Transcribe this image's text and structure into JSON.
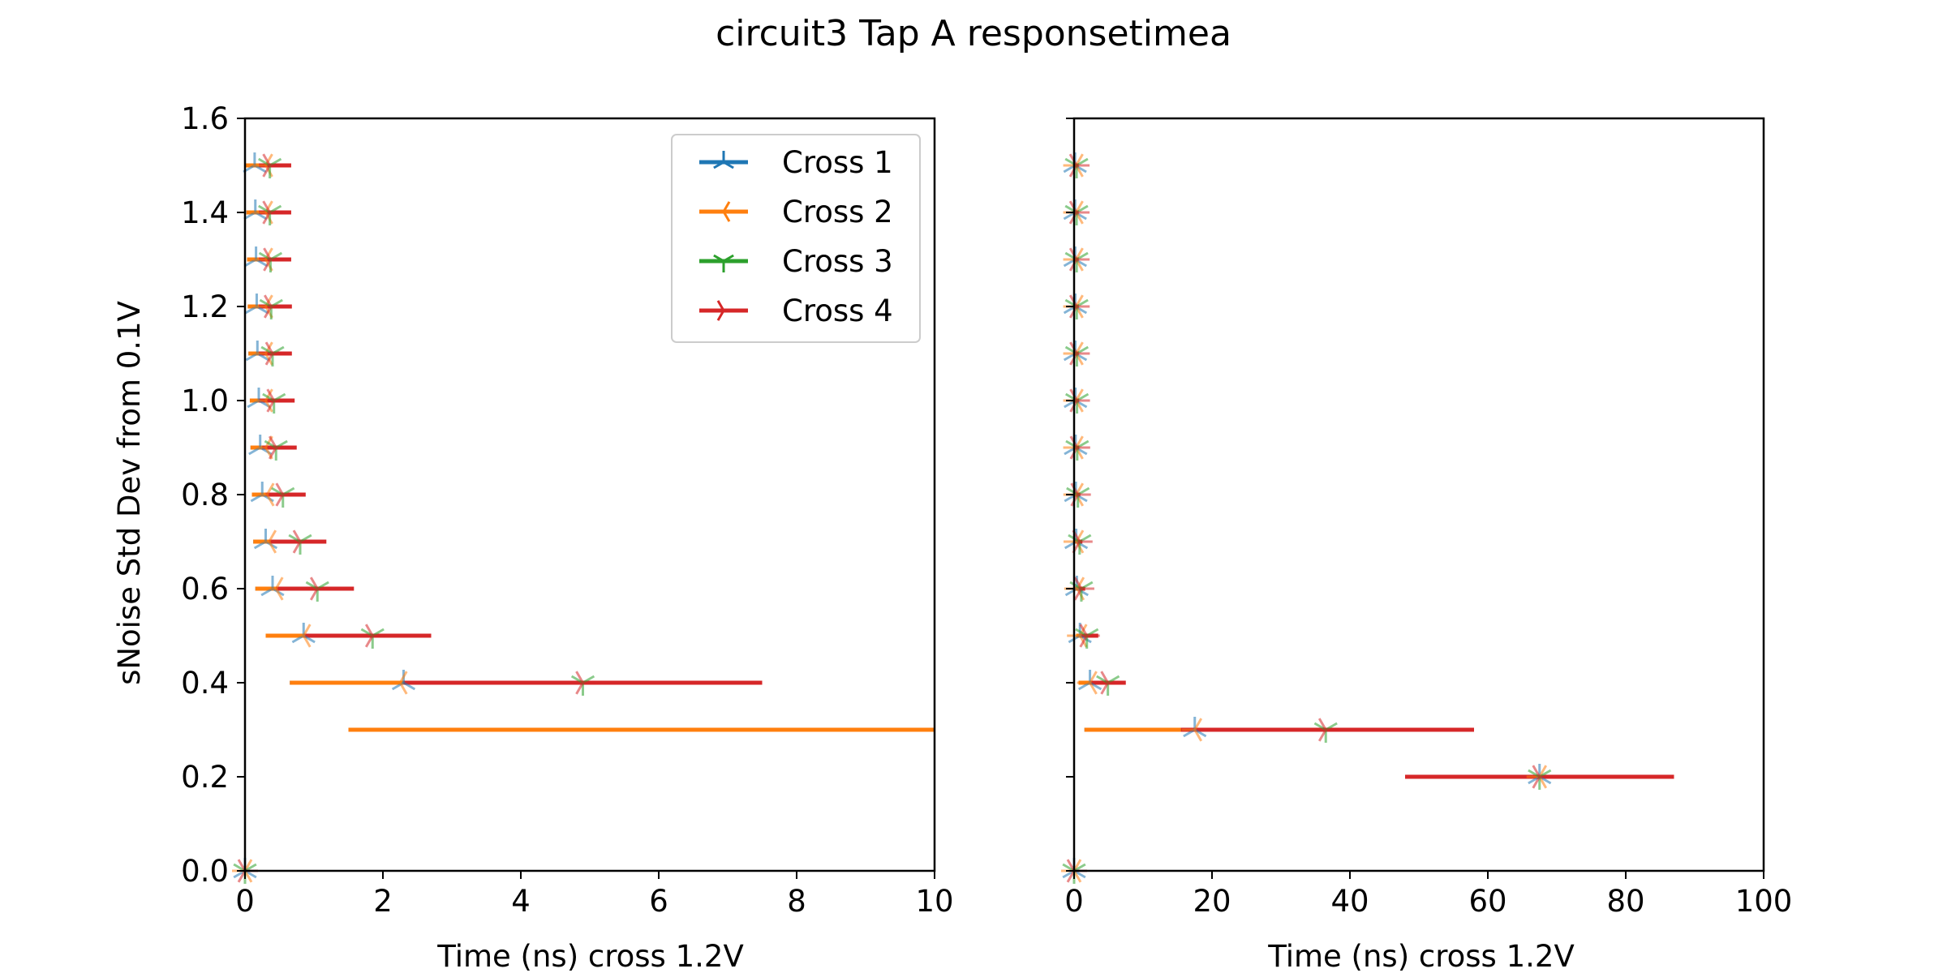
{
  "figure": {
    "title": "circuit3 Tap A responsetimea",
    "colors": {
      "Cross 1": "#1f77b4",
      "Cross 2": "#ff7f0e",
      "Cross 3": "#2ca02c",
      "Cross 4": "#d62728"
    }
  },
  "chart_data": [
    {
      "type": "scatter",
      "panel": "left",
      "xlabel": "Time (ns) cross 1.2V",
      "ylabel": "sNoise Std Dev from 0.1V",
      "xlim": [
        0,
        10
      ],
      "ylim": [
        0,
        1.6
      ],
      "xticks": [
        0,
        2,
        4,
        6,
        8,
        10
      ],
      "yticks": [
        0.0,
        0.2,
        0.4,
        0.6,
        0.8,
        1.0,
        1.2,
        1.4,
        1.6
      ],
      "xtick_labels": [
        "0",
        "2",
        "4",
        "6",
        "8",
        "10"
      ],
      "ytick_labels": [
        "0.0",
        "0.2",
        "0.4",
        "0.6",
        "0.8",
        "1.0",
        "1.2",
        "1.4",
        "1.6"
      ],
      "legend": {
        "position": "upper right",
        "entries": [
          "Cross 1",
          "Cross 2",
          "Cross 3",
          "Cross 4"
        ]
      },
      "series": [
        {
          "name": "Cross 1",
          "marker": "tri-up",
          "points": [
            {
              "y": 0.0,
              "x": 0.0,
              "xmin": 0.0,
              "xmax": 0.0
            },
            {
              "y": 0.4,
              "x": 2.3,
              "xmin": 0.65,
              "xmax": 2.35
            },
            {
              "y": 0.5,
              "x": 0.85,
              "xmin": 0.3,
              "xmax": 0.9
            },
            {
              "y": 0.6,
              "x": 0.4,
              "xmin": 0.15,
              "xmax": 0.45
            },
            {
              "y": 0.7,
              "x": 0.3,
              "xmin": 0.12,
              "xmax": 0.35
            },
            {
              "y": 0.8,
              "x": 0.25,
              "xmin": 0.1,
              "xmax": 0.3
            },
            {
              "y": 0.9,
              "x": 0.22,
              "xmin": 0.08,
              "xmax": 0.28
            },
            {
              "y": 1.0,
              "x": 0.2,
              "xmin": 0.07,
              "xmax": 0.25
            },
            {
              "y": 1.1,
              "x": 0.18,
              "xmin": 0.05,
              "xmax": 0.23
            },
            {
              "y": 1.2,
              "x": 0.17,
              "xmin": 0.04,
              "xmax": 0.22
            },
            {
              "y": 1.3,
              "x": 0.16,
              "xmin": 0.03,
              "xmax": 0.21
            },
            {
              "y": 1.4,
              "x": 0.15,
              "xmin": 0.02,
              "xmax": 0.2
            },
            {
              "y": 1.5,
              "x": 0.14,
              "xmin": 0.01,
              "xmax": 0.2
            }
          ]
        },
        {
          "name": "Cross 2",
          "marker": "tri-left",
          "points": [
            {
              "y": 0.0,
              "x": 0.0,
              "xmin": 0.0,
              "xmax": 0.0
            },
            {
              "y": 0.3,
              "x": null,
              "xmin": 1.5,
              "xmax": 10.0
            },
            {
              "y": 0.4,
              "x": 2.25,
              "xmin": 0.65,
              "xmax": 4.9
            },
            {
              "y": 0.5,
              "x": 0.85,
              "xmin": 0.3,
              "xmax": 1.8
            },
            {
              "y": 0.6,
              "x": 0.45,
              "xmin": 0.15,
              "xmax": 1.05
            },
            {
              "y": 0.7,
              "x": 0.35,
              "xmin": 0.12,
              "xmax": 0.8
            },
            {
              "y": 0.8,
              "x": 0.32,
              "xmin": 0.1,
              "xmax": 0.55
            },
            {
              "y": 0.9,
              "x": 0.3,
              "xmin": 0.08,
              "xmax": 0.48
            },
            {
              "y": 1.0,
              "x": 0.3,
              "xmin": 0.07,
              "xmax": 0.42
            },
            {
              "y": 1.1,
              "x": 0.3,
              "xmin": 0.05,
              "xmax": 0.4
            },
            {
              "y": 1.2,
              "x": 0.3,
              "xmin": 0.04,
              "xmax": 0.38
            },
            {
              "y": 1.3,
              "x": 0.3,
              "xmin": 0.03,
              "xmax": 0.37
            },
            {
              "y": 1.4,
              "x": 0.3,
              "xmin": 0.02,
              "xmax": 0.36
            },
            {
              "y": 1.5,
              "x": 0.3,
              "xmin": 0.01,
              "xmax": 0.36
            }
          ]
        },
        {
          "name": "Cross 3",
          "marker": "tri-down",
          "points": [
            {
              "y": 0.0,
              "x": 0.0,
              "xmin": 0.0,
              "xmax": 0.0
            },
            {
              "y": 0.4,
              "x": 4.9,
              "xmin": 2.3,
              "xmax": 4.95
            },
            {
              "y": 0.5,
              "x": 1.85,
              "xmin": 0.85,
              "xmax": 1.9
            },
            {
              "y": 0.6,
              "x": 1.05,
              "xmin": 0.45,
              "xmax": 1.1
            },
            {
              "y": 0.7,
              "x": 0.8,
              "xmin": 0.35,
              "xmax": 0.82
            },
            {
              "y": 0.8,
              "x": 0.55,
              "xmin": 0.3,
              "xmax": 0.6
            },
            {
              "y": 0.9,
              "x": 0.45,
              "xmin": 0.25,
              "xmax": 0.5
            },
            {
              "y": 1.0,
              "x": 0.42,
              "xmin": 0.2,
              "xmax": 0.45
            },
            {
              "y": 1.1,
              "x": 0.4,
              "xmin": 0.2,
              "xmax": 0.42
            },
            {
              "y": 1.2,
              "x": 0.38,
              "xmin": 0.2,
              "xmax": 0.4
            },
            {
              "y": 1.3,
              "x": 0.37,
              "xmin": 0.2,
              "xmax": 0.4
            },
            {
              "y": 1.4,
              "x": 0.36,
              "xmin": 0.2,
              "xmax": 0.4
            },
            {
              "y": 1.5,
              "x": 0.36,
              "xmin": 0.2,
              "xmax": 0.4
            }
          ]
        },
        {
          "name": "Cross 4",
          "marker": "tri-right",
          "points": [
            {
              "y": 0.0,
              "x": 0.0,
              "xmin": 0.0,
              "xmax": 0.0
            },
            {
              "y": 0.4,
              "x": 4.9,
              "xmin": 2.3,
              "xmax": 7.5
            },
            {
              "y": 0.5,
              "x": 1.85,
              "xmin": 0.85,
              "xmax": 2.7
            },
            {
              "y": 0.6,
              "x": 1.05,
              "xmin": 0.45,
              "xmax": 1.58
            },
            {
              "y": 0.7,
              "x": 0.8,
              "xmin": 0.35,
              "xmax": 1.18
            },
            {
              "y": 0.8,
              "x": 0.55,
              "xmin": 0.3,
              "xmax": 0.88
            },
            {
              "y": 0.9,
              "x": 0.45,
              "xmin": 0.25,
              "xmax": 0.75
            },
            {
              "y": 1.0,
              "x": 0.42,
              "xmin": 0.2,
              "xmax": 0.72
            },
            {
              "y": 1.1,
              "x": 0.4,
              "xmin": 0.2,
              "xmax": 0.68
            },
            {
              "y": 1.2,
              "x": 0.38,
              "xmin": 0.2,
              "xmax": 0.68
            },
            {
              "y": 1.3,
              "x": 0.37,
              "xmin": 0.2,
              "xmax": 0.67
            },
            {
              "y": 1.4,
              "x": 0.36,
              "xmin": 0.2,
              "xmax": 0.67
            },
            {
              "y": 1.5,
              "x": 0.36,
              "xmin": 0.2,
              "xmax": 0.67
            }
          ]
        }
      ]
    },
    {
      "type": "scatter",
      "panel": "right",
      "xlabel": "Time (ns) cross 1.2V",
      "ylabel": "",
      "xlim": [
        0,
        100
      ],
      "ylim": [
        0,
        1.6
      ],
      "xticks": [
        0,
        20,
        40,
        60,
        80,
        100
      ],
      "yticks": [
        0.0,
        0.2,
        0.4,
        0.6,
        0.8,
        1.0,
        1.2,
        1.4,
        1.6
      ],
      "xtick_labels": [
        "0",
        "20",
        "40",
        "60",
        "80",
        "100"
      ],
      "ytick_labels": [],
      "series": [
        {
          "name": "Cross 1",
          "marker": "tri-up",
          "points": [
            {
              "y": 0.0,
              "x": 0.0,
              "xmin": 0.0,
              "xmax": 0.0
            },
            {
              "y": 0.2,
              "x": 67.5,
              "xmin": 67.5,
              "xmax": 67.5
            },
            {
              "y": 0.3,
              "x": 17.5,
              "xmin": 1.5,
              "xmax": 18.0
            },
            {
              "y": 0.4,
              "x": 2.3,
              "xmin": 0.65,
              "xmax": 2.4
            },
            {
              "y": 0.5,
              "x": 0.85,
              "xmin": 0.3,
              "xmax": 0.9
            },
            {
              "y": 0.6,
              "x": 0.4,
              "xmin": 0.15,
              "xmax": 0.5
            },
            {
              "y": 0.7,
              "x": 0.3,
              "xmin": 0.1,
              "xmax": 0.4
            },
            {
              "y": 0.8,
              "x": 0.25,
              "xmin": 0.1,
              "xmax": 0.3
            },
            {
              "y": 0.9,
              "x": 0.22,
              "xmin": 0.08,
              "xmax": 0.3
            },
            {
              "y": 1.0,
              "x": 0.2,
              "xmin": 0.07,
              "xmax": 0.25
            },
            {
              "y": 1.1,
              "x": 0.18,
              "xmin": 0.05,
              "xmax": 0.23
            },
            {
              "y": 1.2,
              "x": 0.17,
              "xmin": 0.04,
              "xmax": 0.22
            },
            {
              "y": 1.3,
              "x": 0.16,
              "xmin": 0.03,
              "xmax": 0.21
            },
            {
              "y": 1.4,
              "x": 0.15,
              "xmin": 0.02,
              "xmax": 0.2
            },
            {
              "y": 1.5,
              "x": 0.14,
              "xmin": 0.01,
              "xmax": 0.2
            }
          ]
        },
        {
          "name": "Cross 2",
          "marker": "tri-left",
          "points": [
            {
              "y": 0.0,
              "x": 0.0,
              "xmin": 0.0,
              "xmax": 0.0
            },
            {
              "y": 0.2,
              "x": 67.5,
              "xmin": 67.5,
              "xmax": 67.5
            },
            {
              "y": 0.3,
              "x": 17.5,
              "xmin": 1.5,
              "xmax": 36.5
            },
            {
              "y": 0.4,
              "x": 2.3,
              "xmin": 0.65,
              "xmax": 4.9
            },
            {
              "y": 0.5,
              "x": 0.85,
              "xmin": 0.3,
              "xmax": 1.85
            },
            {
              "y": 0.6,
              "x": 0.45,
              "xmin": 0.15,
              "xmax": 1.05
            },
            {
              "y": 0.7,
              "x": 0.35,
              "xmin": 0.1,
              "xmax": 0.8
            },
            {
              "y": 0.8,
              "x": 0.32,
              "xmin": 0.1,
              "xmax": 0.55
            },
            {
              "y": 0.9,
              "x": 0.3,
              "xmin": 0.08,
              "xmax": 0.48
            },
            {
              "y": 1.0,
              "x": 0.3,
              "xmin": 0.07,
              "xmax": 0.42
            },
            {
              "y": 1.1,
              "x": 0.3,
              "xmin": 0.05,
              "xmax": 0.4
            },
            {
              "y": 1.2,
              "x": 0.3,
              "xmin": 0.04,
              "xmax": 0.38
            },
            {
              "y": 1.3,
              "x": 0.3,
              "xmin": 0.03,
              "xmax": 0.37
            },
            {
              "y": 1.4,
              "x": 0.3,
              "xmin": 0.02,
              "xmax": 0.36
            },
            {
              "y": 1.5,
              "x": 0.3,
              "xmin": 0.01,
              "xmax": 0.36
            }
          ]
        },
        {
          "name": "Cross 3",
          "marker": "tri-down",
          "points": [
            {
              "y": 0.0,
              "x": 0.0,
              "xmin": 0.0,
              "xmax": 0.0
            },
            {
              "y": 0.2,
              "x": 67.5,
              "xmin": 67.5,
              "xmax": 67.5
            },
            {
              "y": 0.3,
              "x": 36.5,
              "xmin": 17.5,
              "xmax": 37.0
            },
            {
              "y": 0.4,
              "x": 4.9,
              "xmin": 2.3,
              "xmax": 5.0
            },
            {
              "y": 0.5,
              "x": 1.85,
              "xmin": 0.85,
              "xmax": 1.9
            },
            {
              "y": 0.6,
              "x": 1.05,
              "xmin": 0.45,
              "xmax": 1.1
            },
            {
              "y": 0.7,
              "x": 0.8,
              "xmin": 0.35,
              "xmax": 0.85
            },
            {
              "y": 0.8,
              "x": 0.55,
              "xmin": 0.3,
              "xmax": 0.6
            },
            {
              "y": 0.9,
              "x": 0.45,
              "xmin": 0.25,
              "xmax": 0.5
            },
            {
              "y": 1.0,
              "x": 0.42,
              "xmin": 0.2,
              "xmax": 0.45
            },
            {
              "y": 1.1,
              "x": 0.4,
              "xmin": 0.2,
              "xmax": 0.42
            },
            {
              "y": 1.2,
              "x": 0.38,
              "xmin": 0.2,
              "xmax": 0.4
            },
            {
              "y": 1.3,
              "x": 0.37,
              "xmin": 0.2,
              "xmax": 0.4
            },
            {
              "y": 1.4,
              "x": 0.36,
              "xmin": 0.2,
              "xmax": 0.4
            },
            {
              "y": 1.5,
              "x": 0.36,
              "xmin": 0.2,
              "xmax": 0.4
            }
          ]
        },
        {
          "name": "Cross 4",
          "marker": "tri-right",
          "points": [
            {
              "y": 0.0,
              "x": 0.0,
              "xmin": 0.0,
              "xmax": 0.0
            },
            {
              "y": 0.2,
              "x": 67.5,
              "xmin": 48.0,
              "xmax": 87.0
            },
            {
              "y": 0.3,
              "x": 36.5,
              "xmin": 15.5,
              "xmax": 58.0
            },
            {
              "y": 0.4,
              "x": 4.9,
              "xmin": 2.3,
              "xmax": 7.5
            },
            {
              "y": 0.5,
              "x": 1.85,
              "xmin": 0.85,
              "xmax": 3.5
            },
            {
              "y": 0.6,
              "x": 1.05,
              "xmin": 0.45,
              "xmax": 1.6
            },
            {
              "y": 0.7,
              "x": 0.8,
              "xmin": 0.35,
              "xmax": 1.2
            },
            {
              "y": 0.8,
              "x": 0.55,
              "xmin": 0.3,
              "xmax": 0.9
            },
            {
              "y": 0.9,
              "x": 0.45,
              "xmin": 0.25,
              "xmax": 0.75
            },
            {
              "y": 1.0,
              "x": 0.42,
              "xmin": 0.2,
              "xmax": 0.72
            },
            {
              "y": 1.1,
              "x": 0.4,
              "xmin": 0.2,
              "xmax": 0.68
            },
            {
              "y": 1.2,
              "x": 0.38,
              "xmin": 0.2,
              "xmax": 0.68
            },
            {
              "y": 1.3,
              "x": 0.37,
              "xmin": 0.2,
              "xmax": 0.67
            },
            {
              "y": 1.4,
              "x": 0.36,
              "xmin": 0.2,
              "xmax": 0.67
            },
            {
              "y": 1.5,
              "x": 0.36,
              "xmin": 0.2,
              "xmax": 0.67
            }
          ]
        }
      ]
    }
  ]
}
